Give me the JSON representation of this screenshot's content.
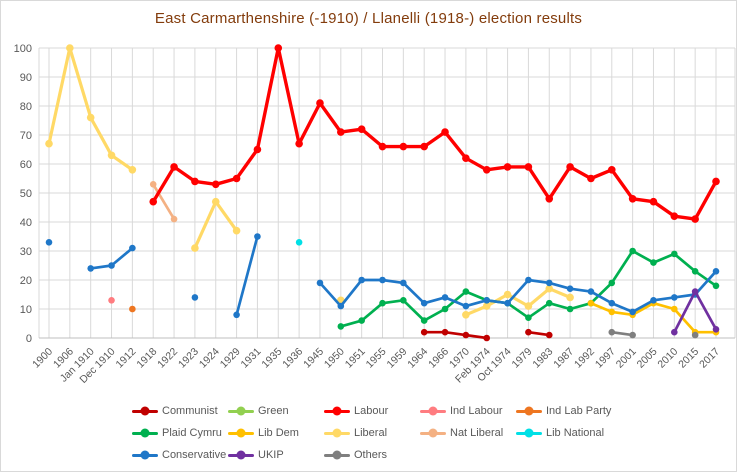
{
  "chart_data": {
    "type": "line",
    "title": "East Carmarthenshire (-1910) / Llanelli (1918-) election results",
    "title_color": "#833C0C",
    "axis_text_color": "#595959",
    "gridline_color": "#D9D9D9",
    "axis_line_color": "#BFBFBF",
    "background_color": "#FFFFFF",
    "ylim": [
      0,
      100
    ],
    "ytick_step": 10,
    "grid": true,
    "x_axis_label_rotation": -45,
    "legend_position": "bottom",
    "categories": [
      "1900",
      "1906",
      "Jan 1910",
      "Dec 1910",
      "1912",
      "1918",
      "1922",
      "1923",
      "1924",
      "1929",
      "1931",
      "1935",
      "1936",
      "1945",
      "1950",
      "1951",
      "1955",
      "1959",
      "1964",
      "1966",
      "1970",
      "Feb 1974",
      "Oct 1974",
      "1979",
      "1983",
      "1987",
      "1992",
      "1997",
      "2001",
      "2005",
      "2010",
      "2015",
      "2017"
    ],
    "series": [
      {
        "name": "Ind Labour",
        "color": "#FF7C80",
        "points": {
          "Dec 1910": 13
        }
      },
      {
        "name": "Ind Lab Party",
        "color": "#EE7621",
        "points": {
          "1912": 10
        }
      },
      {
        "name": "Lib National",
        "color": "#00E0E6",
        "points": {
          "1936": 33
        }
      },
      {
        "name": "Nat Liberal",
        "color": "#F4B183",
        "points": {
          "1918": 53,
          "1922": 41
        }
      },
      {
        "name": "Liberal",
        "color": "#FFD966",
        "width": 3.2,
        "points": {
          "1900": 67,
          "1906": 100,
          "Jan 1910": 76,
          "Dec 1910": 63,
          "1912": 58,
          "1923": 31,
          "1924": 47,
          "1929": 37,
          "1950": 13,
          "1970": 8,
          "Feb 1974": 11,
          "Oct 1974": 15,
          "1979": 11,
          "1983": 17,
          "1987": 14
        }
      },
      {
        "name": "Labour",
        "color": "#FF0000",
        "width": 3.4,
        "points": {
          "1918": 47,
          "1922": 59,
          "1923": 54,
          "1924": 53,
          "1929": 55,
          "1931": 65,
          "1935": 100,
          "1936": 67,
          "1945": 81,
          "1950": 71,
          "1951": 72,
          "1955": 66,
          "1959": 66,
          "1964": 66,
          "1966": 71,
          "1970": 62,
          "Feb 1974": 58,
          "Oct 1974": 59,
          "1979": 59,
          "1983": 48,
          "1987": 59,
          "1992": 55,
          "1997": 58,
          "2001": 48,
          "2005": 47,
          "2010": 42,
          "2015": 41,
          "2017": 54
        }
      },
      {
        "name": "Communist",
        "color": "#C00000",
        "points": {
          "1964": 2,
          "1966": 2,
          "1970": 1,
          "Feb 1974": 0,
          "1979": 2,
          "1983": 1
        }
      },
      {
        "name": "Plaid Cymru",
        "color": "#00B050",
        "points": {
          "1950": 4,
          "1951": 6,
          "1955": 12,
          "1959": 13,
          "1964": 6,
          "1966": 10,
          "1970": 16,
          "Feb 1974": 13,
          "Oct 1974": 12,
          "1979": 7,
          "1983": 12,
          "1987": 10,
          "1992": 12,
          "1997": 19,
          "2001": 30,
          "2005": 26,
          "2010": 29,
          "2015": 23,
          "2017": 18
        }
      },
      {
        "name": "Green",
        "color": "#92D050",
        "points": {}
      },
      {
        "name": "Lib Dem",
        "color": "#FFC000",
        "points": {
          "1992": 12,
          "1997": 9,
          "2001": 8,
          "2005": 12,
          "2010": 10,
          "2015": 2,
          "2017": 2
        }
      },
      {
        "name": "Conservative",
        "color": "#1F77C8",
        "points": {
          "1900": 33,
          "Jan 1910": 24,
          "Dec 1910": 25,
          "1912": 31,
          "1923": 14,
          "1929": 8,
          "1931": 35,
          "1945": 19,
          "1950": 11,
          "1951": 20,
          "1955": 20,
          "1959": 19,
          "1964": 12,
          "1966": 14,
          "1970": 11,
          "Feb 1974": 13,
          "Oct 1974": 12,
          "1979": 20,
          "1983": 19,
          "1987": 17,
          "1992": 16,
          "1997": 12,
          "2001": 9,
          "2005": 13,
          "2010": 14,
          "2015": 15,
          "2017": 23
        }
      },
      {
        "name": "UKIP",
        "color": "#7030A0",
        "points": {
          "2010": 2,
          "2015": 16,
          "2017": 3
        }
      },
      {
        "name": "Others",
        "color": "#7F7F7F",
        "points": {
          "1997": 2,
          "2001": 1,
          "2015": 1
        }
      }
    ],
    "legend_rows": [
      [
        "Communist",
        "Green",
        "Labour",
        "Ind Labour",
        "Ind Lab Party"
      ],
      [
        "Plaid Cymru",
        "Lib Dem",
        "Liberal",
        "Nat Liberal",
        "Lib National"
      ],
      [
        "Conservative",
        "UKIP",
        "Others"
      ]
    ]
  }
}
